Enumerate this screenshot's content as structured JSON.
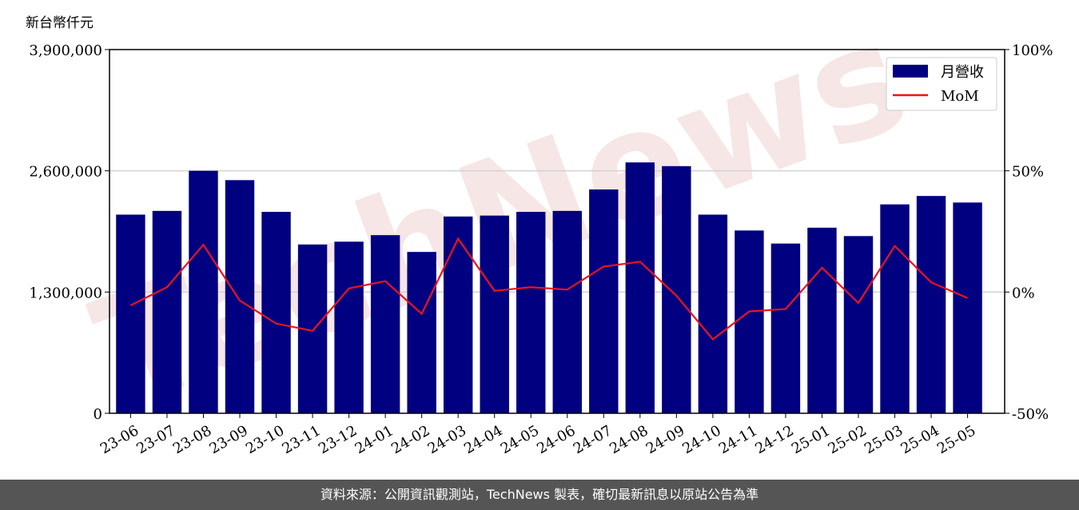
{
  "unit_label": "新台幣仟元",
  "footer_text": "資料來源：公開資訊觀測站，TechNews 製表，確切最新訊息以原站公告為準",
  "watermark_text": "TechNews",
  "colors": {
    "bar": "#000080",
    "line": "#e8141c",
    "grid": "#d0d0d0",
    "footer_bg": "#555555",
    "watermark": "#f3dede"
  },
  "chart_data": {
    "type": "bar",
    "categories": [
      "23-06",
      "23-07",
      "23-08",
      "23-09",
      "23-10",
      "23-11",
      "23-12",
      "24-01",
      "24-02",
      "24-03",
      "24-04",
      "24-05",
      "24-06",
      "24-07",
      "24-08",
      "24-09",
      "24-10",
      "24-11",
      "24-12",
      "25-01",
      "25-02",
      "25-03",
      "25-04",
      "25-05"
    ],
    "series": [
      {
        "name": "月營收",
        "type": "bar",
        "axis": "left",
        "values": [
          2130000,
          2170000,
          2600000,
          2500000,
          2160000,
          1810000,
          1840000,
          1910000,
          1730000,
          2110000,
          2120000,
          2160000,
          2170000,
          2400000,
          2690000,
          2650000,
          2130000,
          1960000,
          1820000,
          1990000,
          1900000,
          2240000,
          2330000,
          2260000
        ]
      },
      {
        "name": "MoM",
        "type": "line",
        "axis": "right",
        "unit": "%",
        "values": [
          -5.5,
          2.0,
          19.5,
          -3.5,
          -13.0,
          -16.0,
          1.5,
          4.5,
          -9.0,
          22.0,
          0.5,
          2.0,
          1.0,
          10.5,
          12.5,
          -1.5,
          -19.5,
          -8.0,
          -7.0,
          10.0,
          -4.5,
          19.0,
          4.0,
          -2.5
        ]
      }
    ],
    "y_left": {
      "ticks": [
        0,
        1300000,
        2600000,
        3900000
      ],
      "tick_labels": [
        "0",
        "1,300,000",
        "2,600,000",
        "3,900,000"
      ],
      "ylim": [
        0,
        3900000
      ]
    },
    "y_right": {
      "ticks": [
        -50,
        0,
        50,
        100
      ],
      "tick_labels": [
        "-50%",
        "0%",
        "50%",
        "100%"
      ],
      "ylim": [
        -50,
        100
      ]
    },
    "grid": "horizontal",
    "legend_position": "top-right"
  }
}
